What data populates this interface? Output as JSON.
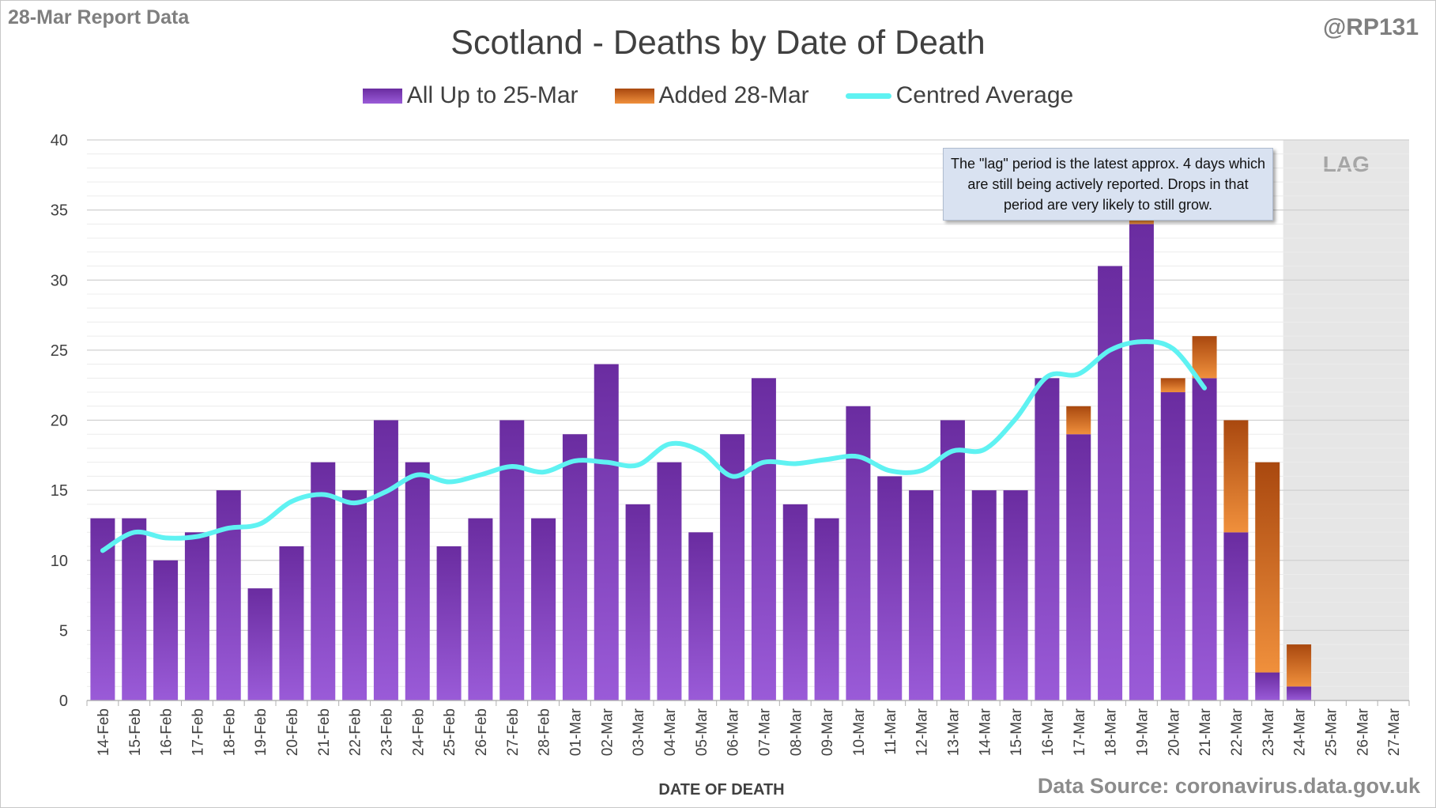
{
  "header": {
    "report_label": "28-Mar Report Data",
    "handle": "@RP131"
  },
  "footer": {
    "source": "Data Source: coronavirus.data.gov.uk"
  },
  "note": {
    "text": "The \"lag\" period is the latest approx. 4 days which are still being actively reported. Drops in that period are very likely to still grow."
  },
  "legend": {
    "all": "All Up to 25-Mar",
    "added": "Added 28-Mar",
    "avg": "Centred Average"
  },
  "colors": {
    "all": "#7a38b8",
    "added": "#e07b2e",
    "avg": "#5ff2f2",
    "lag_shade": "#e6e6e6"
  },
  "chart_data": {
    "type": "bar",
    "title": "Scotland - Deaths by Date of Death",
    "xlabel": "DATE OF DEATH",
    "ylabel": "",
    "ylim": [
      0,
      40
    ],
    "yticks": [
      0,
      5,
      10,
      15,
      20,
      25,
      30,
      35,
      40
    ],
    "stacked": true,
    "grid": true,
    "legend_position": "top",
    "lag_label": "LAG",
    "lag_categories": [
      "24-Mar",
      "25-Mar",
      "26-Mar",
      "27-Mar"
    ],
    "categories": [
      "14-Feb",
      "15-Feb",
      "16-Feb",
      "17-Feb",
      "18-Feb",
      "19-Feb",
      "20-Feb",
      "21-Feb",
      "22-Feb",
      "23-Feb",
      "24-Feb",
      "25-Feb",
      "26-Feb",
      "27-Feb",
      "28-Feb",
      "01-Mar",
      "02-Mar",
      "03-Mar",
      "04-Mar",
      "05-Mar",
      "06-Mar",
      "07-Mar",
      "08-Mar",
      "09-Mar",
      "10-Mar",
      "11-Mar",
      "12-Mar",
      "13-Mar",
      "14-Mar",
      "15-Mar",
      "16-Mar",
      "17-Mar",
      "18-Mar",
      "19-Mar",
      "20-Mar",
      "21-Mar",
      "22-Mar",
      "23-Mar",
      "24-Mar",
      "25-Mar",
      "26-Mar",
      "27-Mar"
    ],
    "series": [
      {
        "name": "All Up to 25-Mar",
        "values": [
          13,
          13,
          10,
          12,
          15,
          8,
          11,
          17,
          15,
          20,
          17,
          11,
          13,
          20,
          13,
          19,
          24,
          14,
          17,
          12,
          19,
          23,
          14,
          13,
          21,
          16,
          15,
          20,
          15,
          15,
          23,
          19,
          31,
          34,
          22,
          23,
          12,
          2,
          1,
          0,
          0,
          0
        ]
      },
      {
        "name": "Added 28-Mar",
        "values": [
          0,
          0,
          0,
          0,
          0,
          0,
          0,
          0,
          0,
          0,
          0,
          0,
          0,
          0,
          0,
          0,
          0,
          0,
          0,
          0,
          0,
          0,
          0,
          0,
          0,
          0,
          0,
          0,
          0,
          0,
          0,
          2,
          0,
          1,
          1,
          3,
          8,
          15,
          3,
          0,
          0,
          0
        ]
      },
      {
        "name": "Centred Average",
        "type": "line",
        "values": [
          10.7,
          12.0,
          11.6,
          11.7,
          12.3,
          12.6,
          14.2,
          14.7,
          14.1,
          14.9,
          16.1,
          15.6,
          16.1,
          16.7,
          16.3,
          17.1,
          17.0,
          16.8,
          18.3,
          17.8,
          16.0,
          17.0,
          16.9,
          17.2,
          17.4,
          16.4,
          16.4,
          17.8,
          17.9,
          20.1,
          23.1,
          23.3,
          25.0,
          25.6,
          25.1,
          22.3,
          null,
          null,
          null,
          null,
          null,
          null
        ]
      }
    ]
  }
}
